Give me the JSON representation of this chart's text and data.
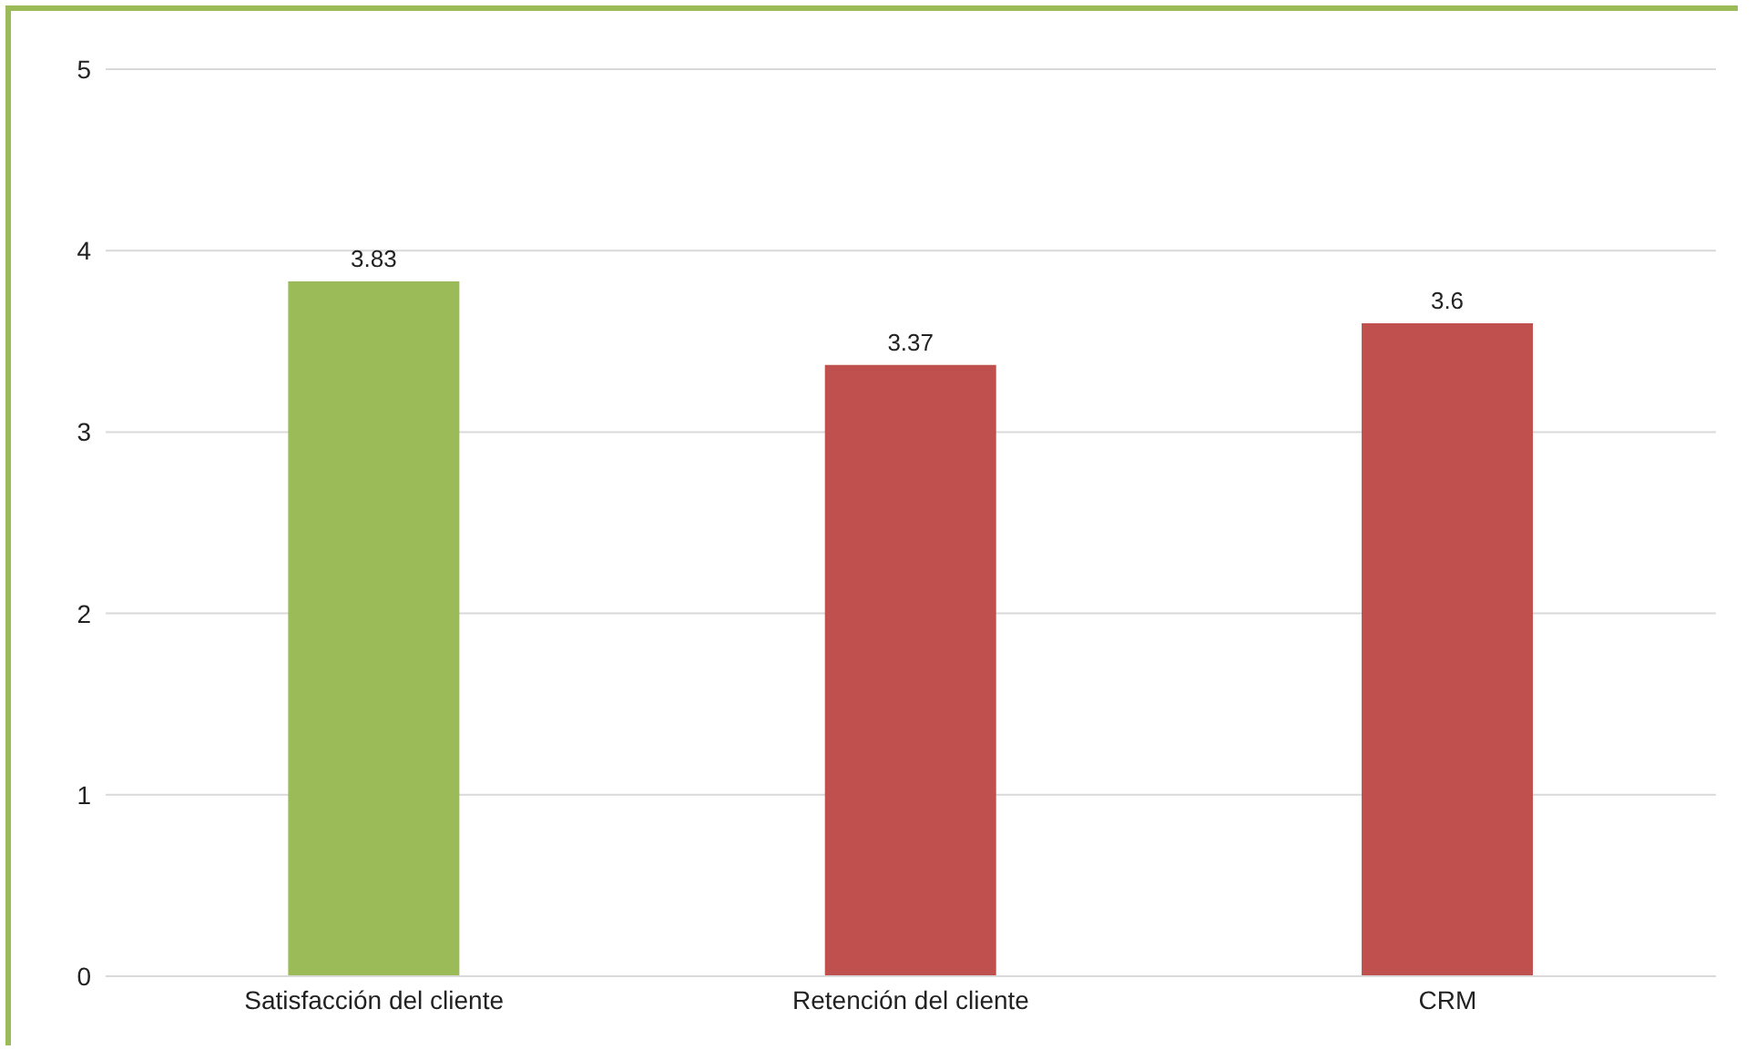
{
  "chart_data": {
    "type": "bar",
    "categories": [
      "Satisfacción del cliente",
      "Retención del cliente",
      "CRM"
    ],
    "values": [
      3.83,
      3.37,
      3.6
    ],
    "colors": [
      "#9bbb59",
      "#c0504d",
      "#c0504d"
    ],
    "ylim": [
      0,
      5
    ],
    "yticks": [
      0,
      1,
      2,
      3,
      4,
      5
    ],
    "grid": "y",
    "data_labels": true
  }
}
